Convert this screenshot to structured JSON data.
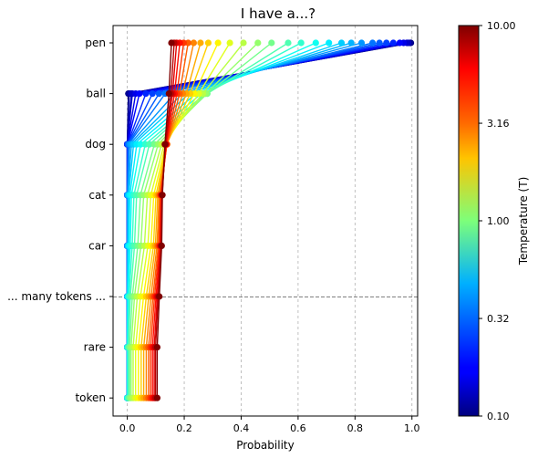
{
  "chart_data": {
    "type": "line",
    "title": "I have a...?",
    "xlabel": "Probability",
    "ylabel": "",
    "xlim": [
      -0.05,
      1.02
    ],
    "x_ticks": [
      "0.0",
      "0.2",
      "0.4",
      "0.6",
      "0.8",
      "1.0"
    ],
    "x_tick_values": [
      0.0,
      0.2,
      0.4,
      0.6,
      0.8,
      1.0
    ],
    "categories": [
      "pen",
      "ball",
      "dog",
      "cat",
      "car",
      "... many tokens ...",
      "rare",
      "token"
    ],
    "grid": "vertical dashed",
    "separator_after_category": "car",
    "colorbar": {
      "label": "Temperature (T)",
      "scale": "log",
      "colormap": "jet",
      "range": [
        0.1,
        10.0
      ],
      "ticks": [
        "0.10",
        "0.32",
        "1.00",
        "3.16",
        "10.00"
      ],
      "tick_values": [
        0.1,
        0.316,
        1.0,
        3.16,
        10.0
      ]
    },
    "temperatures_shown": [
      0.1,
      0.11,
      0.13,
      0.14,
      0.16,
      0.18,
      0.21,
      0.24,
      0.27,
      0.3,
      0.35,
      0.4,
      0.45,
      0.52,
      0.6,
      0.7,
      0.8,
      0.95,
      1.1,
      1.3,
      1.55,
      1.85,
      2.2,
      2.6,
      3.1,
      3.7,
      4.4,
      5.3,
      6.4,
      7.7,
      10.0
    ],
    "series_note": "one polyline per temperature across all categories; probabilities follow softmax with temperature scaling",
    "probabilities_at_T_min": {
      "pen": 0.99,
      "ball": 0.01,
      "dog": 0.0,
      "cat": 0.0,
      "car": 0.0,
      "... many tokens ...": 0.0,
      "rare": 0.0,
      "token": 0.0
    },
    "probabilities_at_T_1": {
      "pen": 0.49,
      "ball": 0.28,
      "dog": 0.1,
      "cat": 0.05,
      "car": 0.04,
      "... many tokens ...": 0.02,
      "rare": 0.01,
      "token": 0.01
    },
    "probabilities_at_T_max": {
      "pen": 0.15,
      "ball": 0.14,
      "dog": 0.13,
      "cat": 0.125,
      "car": 0.12,
      "... many tokens ...": 0.11,
      "rare": 0.1,
      "token": 0.095
    }
  }
}
